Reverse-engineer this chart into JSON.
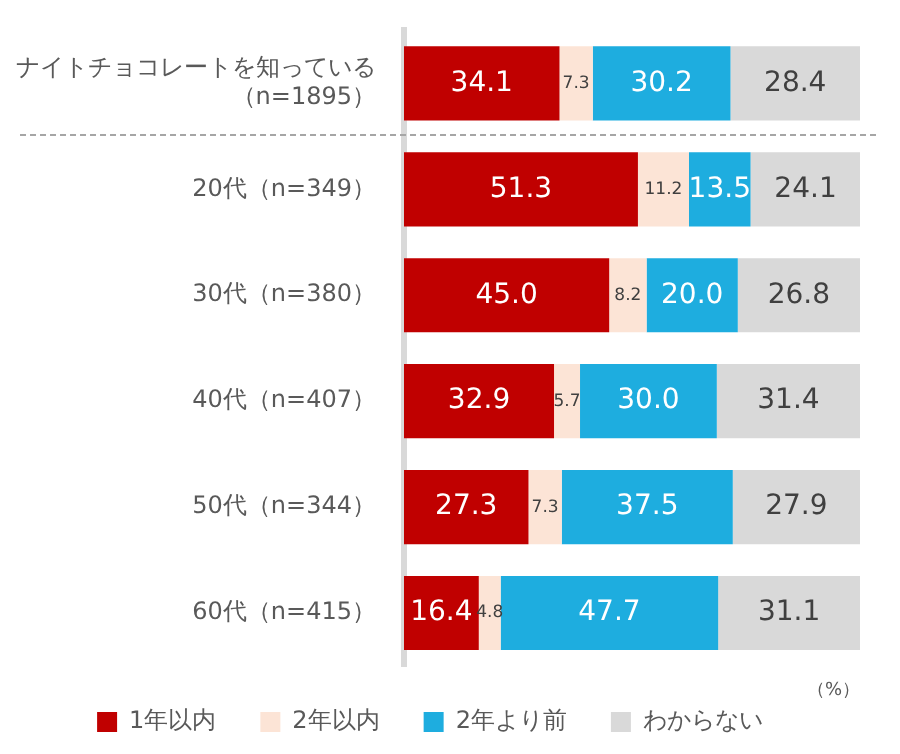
{
  "chart_data": {
    "type": "bar",
    "orientation": "horizontal",
    "stacked": true,
    "categories": [
      "ナイトチョコレートを知っている（n=1895）",
      "20代（n=349）",
      "30代（n=380）",
      "40代（n=407）",
      "50代（n=344）",
      "60代（n=415）"
    ],
    "series": [
      {
        "name": "1年以内",
        "color": "#c00000",
        "values": [
          34.1,
          51.3,
          45.0,
          32.9,
          27.3,
          16.4
        ],
        "value_labels": [
          "34.1",
          "51.3",
          "45.0",
          "32.9",
          "27.3",
          "16.4"
        ]
      },
      {
        "name": "2年以内",
        "color": "#fce4d6",
        "values": [
          7.3,
          11.2,
          8.2,
          5.7,
          7.3,
          4.8
        ],
        "value_labels": [
          "7.3",
          "11.2",
          "8.2",
          "5.7",
          "7.3",
          "4.8"
        ]
      },
      {
        "name": "2年より前",
        "color": "#1eaddf",
        "values": [
          30.2,
          13.5,
          20.0,
          30.0,
          37.5,
          47.7
        ],
        "value_labels": [
          "30.2",
          "13.5",
          "20.0",
          "30.0",
          "37.5",
          "47.7"
        ]
      },
      {
        "name": "わからない",
        "color": "#d9d9d9",
        "values": [
          28.4,
          24.1,
          26.8,
          31.4,
          27.9,
          31.1
        ],
        "value_labels": [
          "28.4",
          "24.1",
          "26.8",
          "31.4",
          "27.9",
          "31.1"
        ]
      }
    ],
    "xlim": [
      0,
      100
    ],
    "tick_labels": "y",
    "legend": "bottom",
    "annotations": [
      "（%）"
    ]
  }
}
